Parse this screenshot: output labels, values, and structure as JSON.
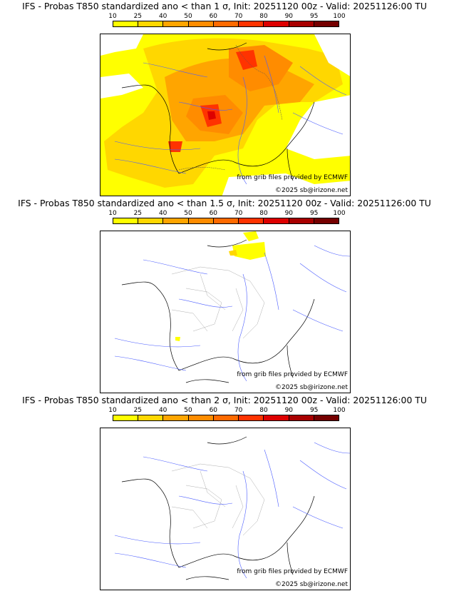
{
  "panels": [
    {
      "title": "IFS - Probas T850  standardized ano < than 1 σ, Init: 20251120 00z - Valid: 20251126:00 TU",
      "threshold": "1 σ"
    },
    {
      "title": "IFS - Probas T850  standardized ano < than 1.5 σ, Init: 20251120 00z - Valid: 20251126:00 TU",
      "threshold": "1.5 σ"
    },
    {
      "title": "IFS - Probas T850  standardized ano < than 2 σ, Init: 20251120 00z - Valid: 20251126:00 TU",
      "threshold": "2 σ"
    }
  ],
  "colorbar": {
    "ticks": [
      "10",
      "25",
      "40",
      "50",
      "60",
      "70",
      "80",
      "90",
      "95",
      "100"
    ],
    "colors": [
      "#ffff00",
      "#ffd700",
      "#ffa500",
      "#ff8c00",
      "#ff6a00",
      "#ff3300",
      "#dd0000",
      "#a80000",
      "#750000"
    ]
  },
  "credits": {
    "source": "from grib files provided by ECMWF",
    "copyright": "©2025 sb@irizone.net"
  }
}
